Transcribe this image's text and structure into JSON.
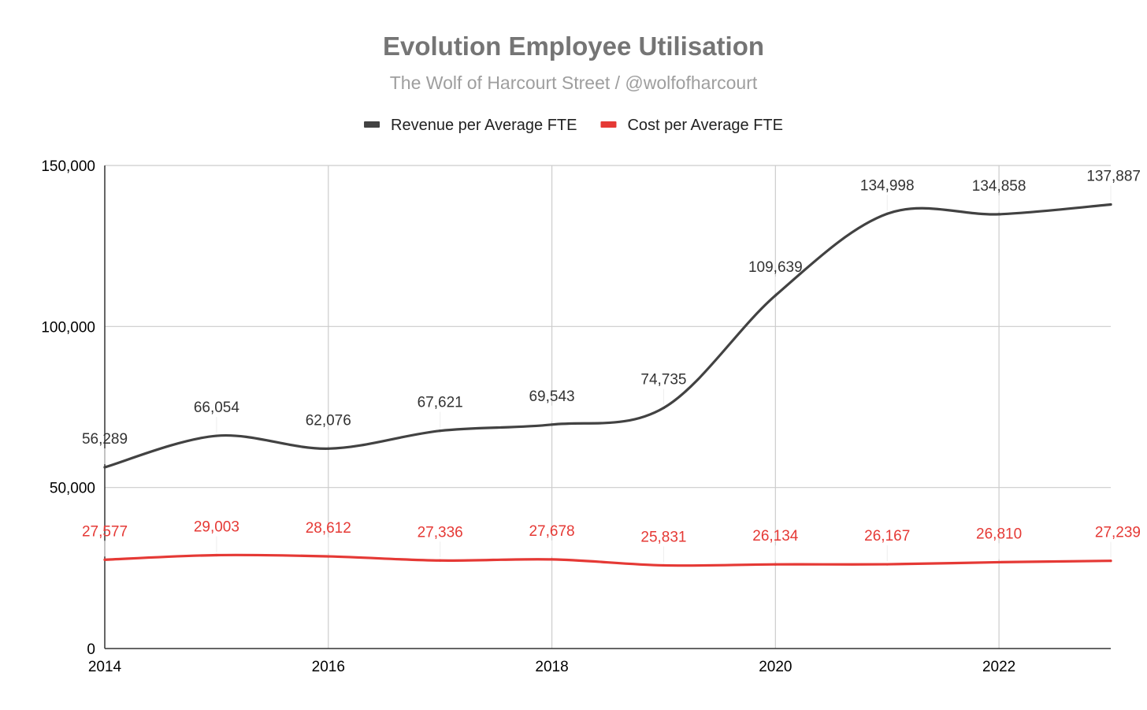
{
  "chart_data": {
    "type": "line",
    "title": "Evolution Employee Utilisation",
    "subtitle": "The Wolf of Harcourt Street / @wolfofharcourt",
    "x": [
      2014,
      2015,
      2016,
      2017,
      2018,
      2019,
      2020,
      2021,
      2022,
      2023
    ],
    "x_ticks": [
      "2014",
      "2016",
      "2018",
      "2020",
      "2022"
    ],
    "y_ticks": [
      "0",
      "50,000",
      "100,000",
      "150,000"
    ],
    "ylim": [
      0,
      150000
    ],
    "xlim": [
      2014,
      2023
    ],
    "grid": true,
    "legend_position": "top",
    "series": [
      {
        "name": "Revenue per Average FTE",
        "color": "#424242",
        "values": [
          56289,
          66054,
          62076,
          67621,
          69543,
          74735,
          109639,
          134998,
          134858,
          137887
        ],
        "labels": [
          "56,289",
          "66,054",
          "62,076",
          "67,621",
          "69,543",
          "74,735",
          "109,639",
          "134,998",
          "134,858",
          "137,887"
        ]
      },
      {
        "name": "Cost per Average FTE",
        "color": "#e53935",
        "values": [
          27577,
          29003,
          28612,
          27336,
          27678,
          25831,
          26134,
          26167,
          26810,
          27239
        ],
        "labels": [
          "27,577",
          "29,003",
          "28,612",
          "27,336",
          "27,678",
          "25,831",
          "26,134",
          "26,167",
          "26,810",
          "27,239"
        ]
      }
    ]
  }
}
